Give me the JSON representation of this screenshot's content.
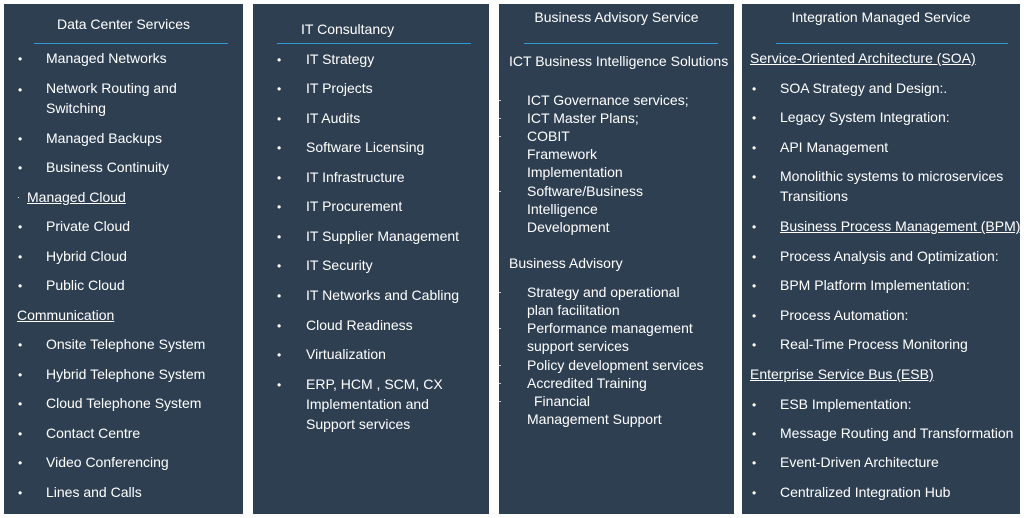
{
  "panels": [
    {
      "title": "Data Center Services",
      "items": [
        "Managed Networks",
        "Network Routing and Switching",
        "Managed Backups",
        "Business Continuity",
        "Managed Cloud",
        "Private Cloud",
        "Hybrid Cloud",
        "Public Cloud",
        "Communication",
        "Onsite Telephone System",
        "Hybrid Telephone System",
        "Cloud Telephone System",
        "Contact Centre",
        "Video Conferencing",
        "Lines and Calls"
      ]
    },
    {
      "title": "IT Consultancy",
      "items": [
        "IT Strategy",
        "IT Projects",
        "IT Audits",
        "Software Licensing",
        "IT Infrastructure",
        "IT Procurement",
        "IT Supplier Management",
        "IT Security",
        "IT Networks and Cabling",
        "Cloud Readiness",
        "Virtualization",
        "ERP, HCM , SCM, CX Implementation and Support services"
      ]
    },
    {
      "title": "Business Advisory Service",
      "heading1": "ICT Business Intelligence Solutions",
      "items1": [
        "ICT Governance services;",
        "ICT Master Plans;",
        "COBIT Framework Implementation",
        "Software/Business Intelligence Development"
      ],
      "heading2": "Business Advisory",
      "items2": [
        "Strategy and operational plan facilitation",
        "Performance management support services",
        "Policy development services",
        "Accredited Training",
        "Financial Management Support"
      ]
    },
    {
      "title": "Integration Managed Service",
      "items": [
        "Service-Oriented Architecture (SOA)",
        "SOA Strategy and Design:.",
        "Legacy System Integration:",
        "API Management",
        "Monolithic systems to microservices Transitions",
        "Business Process Management (BPM)",
        "Process Analysis and Optimization:",
        "BPM Platform Implementation:",
        "Process Automation:",
        "Real-Time Process Monitoring",
        "Enterprise Service Bus (ESB)",
        "ESB Implementation:",
        "Message Routing and Transformation",
        "Event-Driven Architecture",
        "Centralized Integration Hub"
      ]
    }
  ]
}
